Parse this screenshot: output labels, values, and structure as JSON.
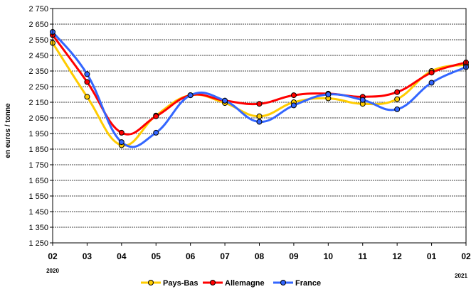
{
  "chart_data": {
    "type": "line",
    "title": "",
    "xlabel": "",
    "ylabel": "en euros / tonne",
    "ylim": [
      1250,
      2750
    ],
    "ytick_values": [
      1250,
      1350,
      1450,
      1550,
      1650,
      1750,
      1850,
      1950,
      2050,
      2150,
      2250,
      2350,
      2450,
      2550,
      2650,
      2750
    ],
    "ytick_labels": [
      "1 250",
      "1 350",
      "1 450",
      "1 550",
      "1 650",
      "1 750",
      "1 850",
      "1 950",
      "2 050",
      "2 150",
      "2 250",
      "2 350",
      "2 450",
      "2 550",
      "2 650",
      "2 750"
    ],
    "categories": [
      "02",
      "03",
      "04",
      "05",
      "06",
      "07",
      "08",
      "09",
      "10",
      "11",
      "12",
      "01",
      "02"
    ],
    "year_labels": {
      "start": "2020",
      "end": "2021"
    },
    "grid": true,
    "legend_position": "bottom",
    "series": [
      {
        "name": "Pays-Bas",
        "color": "#ffcc00",
        "values": [
          2530,
          2185,
          1875,
          2065,
          2195,
          2145,
          2060,
          2150,
          2175,
          2140,
          2170,
          2350,
          2390
        ]
      },
      {
        "name": "Allemagne",
        "color": "#ff0000",
        "values": [
          2580,
          2280,
          1955,
          2060,
          2195,
          2160,
          2140,
          2195,
          2205,
          2185,
          2215,
          2340,
          2405
        ]
      },
      {
        "name": "France",
        "color": "#3366ff",
        "values": [
          2600,
          2330,
          1895,
          1955,
          2195,
          2160,
          2025,
          2130,
          2200,
          2165,
          2105,
          2275,
          2375
        ]
      }
    ]
  }
}
